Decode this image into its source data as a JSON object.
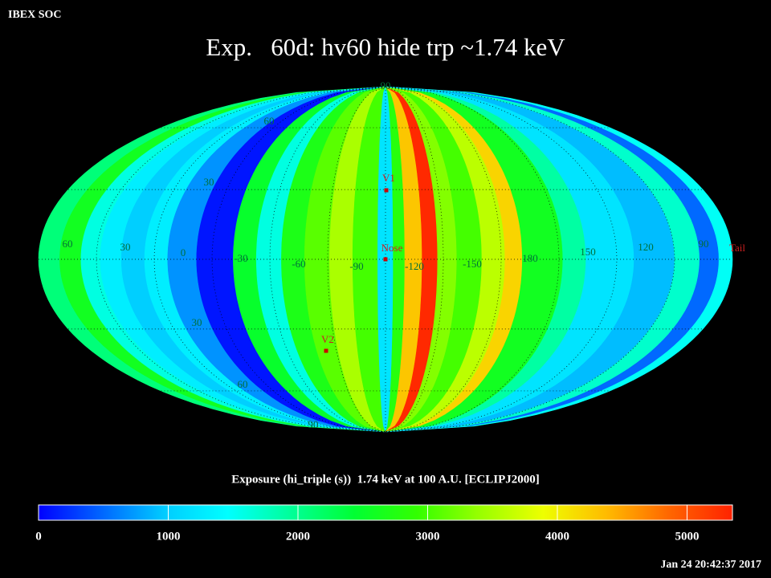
{
  "header": {
    "label": "IBEX SOC",
    "title": "Exp.   60d: hv60 hide trp ~1.74 keV",
    "timestamp": "Jan 24 20:42:37 2017"
  },
  "map": {
    "bands": {
      "lon_edges": [
        75,
        64,
        53,
        43,
        32,
        20,
        8,
        353,
        334,
        322,
        309,
        297,
        284,
        272,
        259,
        251,
        245,
        236,
        228,
        218,
        205,
        193,
        184,
        163,
        151,
        126,
        105,
        92,
        82,
        75
      ],
      "values": [
        2100,
        2600,
        1600,
        1300,
        1000,
        1300,
        700,
        100,
        2500,
        1600,
        2700,
        3100,
        3500,
        3000,
        1200,
        2800,
        4300,
        5300,
        3300,
        3000,
        3600,
        4200,
        2600,
        1900,
        1200,
        900,
        1700,
        500,
        1500
      ]
    },
    "lon_labels": [
      60,
      30,
      0,
      -30,
      -60,
      -90,
      -120,
      -150,
      180,
      150,
      120,
      90
    ],
    "lat_labels": [
      90,
      60,
      30,
      30,
      60,
      90
    ],
    "markers": [
      "V1",
      "Nose",
      "V2",
      "Tail"
    ]
  },
  "colorbar": {
    "label": "Exposure (hi_triple (s))  1.74 keV at 100 A.U. [ECLIPJ2000]",
    "clim": [
      0,
      5350
    ],
    "ticks": [
      0,
      1000,
      2000,
      3000,
      4000,
      5000
    ],
    "colormap": [
      "#0000ff",
      "#0066ff",
      "#00ccff",
      "#00ffff",
      "#00ff99",
      "#00ff33",
      "#33ff00",
      "#99ff00",
      "#eeff00",
      "#ffbb00",
      "#ff6600",
      "#ff2200"
    ]
  }
}
